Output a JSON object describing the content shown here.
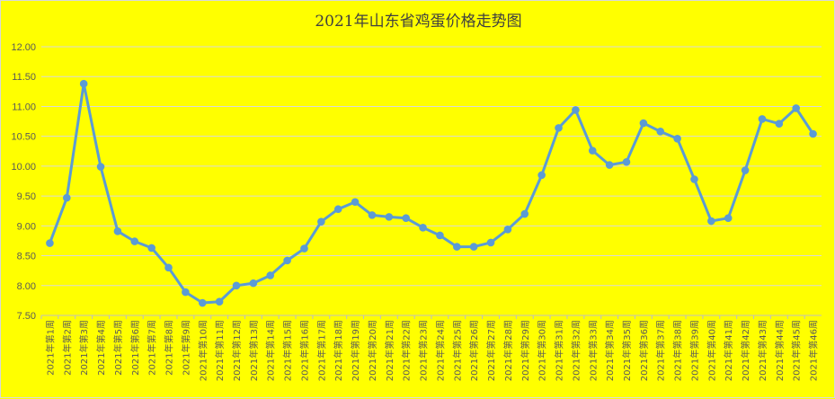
{
  "chart_data": {
    "type": "line",
    "title": "2021年山东省鸡蛋价格走势图",
    "xlabel": "",
    "ylabel": "",
    "ylim": [
      7.5,
      12.0
    ],
    "yticks": [
      "7.50",
      "8.00",
      "8.50",
      "9.00",
      "9.50",
      "10.00",
      "10.50",
      "11.00",
      "11.50",
      "12.00"
    ],
    "grid": true,
    "legend": "none",
    "line_color": "#5b9bd5",
    "categories": [
      "2021年第1周",
      "2021年第2周",
      "2021年第3周",
      "2021年第4周",
      "2021年第5周",
      "2021年第6周",
      "2021年第7周",
      "2021年第8周",
      "2021年第9周",
      "2021年第10周",
      "2021年第11周",
      "2021年第12周",
      "2021年第13周",
      "2021年第14周",
      "2021年第15周",
      "2021年第16周",
      "2021年第17周",
      "2021年第18周",
      "2021年第19周",
      "2021年第20周",
      "2021年第21周",
      "2021年第22周",
      "2021年第23周",
      "2021年第24周",
      "2021年第25周",
      "2021年第26周",
      "2021年第27周",
      "2021年第28周",
      "2021年第29周",
      "2021年第30周",
      "2021年第31周",
      "2021年第32周",
      "2021年第33周",
      "2021年第34周",
      "2021年第35周",
      "2021年第36周",
      "2021年第37周",
      "2021年第38周",
      "2021年第39周",
      "2021年第40周",
      "2021年第41周",
      "2021年第42周",
      "2021年第43周",
      "2021年第44周",
      "2021年第45周",
      "2021年第46周"
    ],
    "values": [
      8.71,
      9.47,
      11.38,
      9.99,
      8.91,
      8.74,
      8.63,
      8.3,
      7.89,
      7.71,
      7.73,
      8.0,
      8.04,
      8.17,
      8.42,
      8.62,
      9.07,
      9.28,
      9.4,
      9.18,
      9.15,
      9.13,
      8.97,
      8.84,
      8.65,
      8.65,
      8.72,
      8.94,
      9.2,
      9.85,
      10.64,
      10.94,
      10.26,
      10.02,
      10.07,
      10.72,
      10.58,
      10.46,
      9.78,
      9.08,
      9.13,
      9.93,
      10.79,
      10.71,
      10.97,
      10.54
    ]
  }
}
